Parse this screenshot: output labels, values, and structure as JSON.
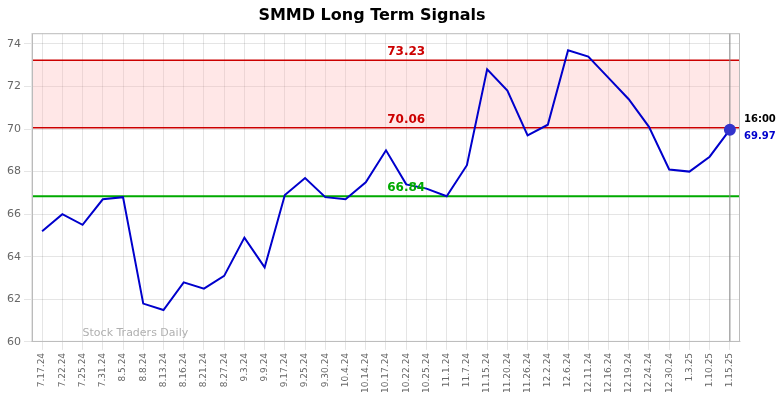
{
  "chart_data": {
    "type": "line",
    "title": "SMMD Long Term Signals",
    "categories": [
      "7.17.24",
      "7.22.24",
      "7.25.24",
      "7.31.24",
      "8.5.24",
      "8.8.24",
      "8.13.24",
      "8.16.24",
      "8.21.24",
      "8.27.24",
      "9.3.24",
      "9.9.24",
      "9.17.24",
      "9.25.24",
      "9.30.24",
      "10.4.24",
      "10.14.24",
      "10.17.24",
      "10.22.24",
      "10.25.24",
      "11.1.24",
      "11.7.24",
      "11.15.24",
      "11.20.24",
      "11.26.24",
      "12.2.24",
      "12.6.24",
      "12.11.24",
      "12.16.24",
      "12.19.24",
      "12.24.24",
      "12.30.24",
      "1.3.25",
      "1.10.25",
      "1.15.25"
    ],
    "values": [
      65.2,
      66.0,
      65.5,
      66.7,
      66.8,
      61.8,
      61.5,
      62.8,
      62.5,
      63.1,
      64.9,
      63.5,
      66.9,
      67.7,
      66.8,
      66.7,
      67.5,
      69.0,
      67.4,
      67.2,
      66.84,
      68.3,
      72.8,
      71.8,
      69.7,
      70.2,
      73.7,
      73.4,
      72.4,
      71.4,
      70.1,
      68.1,
      68.0,
      68.7,
      69.97
    ],
    "color": "#0000cc",
    "ylim": [
      60,
      74.5
    ],
    "yticks": [
      60,
      62,
      64,
      66,
      68,
      70,
      72,
      74
    ],
    "grid": true,
    "annotations": [
      {
        "type": "band",
        "y": [
          70.06,
          73.23
        ],
        "color": "#ffaaaa"
      },
      {
        "type": "hline",
        "y": 66.84,
        "label": "66.84",
        "x": "10.22.24",
        "color": "#00aa00"
      },
      {
        "type": "hline",
        "y": 70.06,
        "label": "70.06",
        "x": "10.22.24",
        "color": "#cc0000"
      },
      {
        "type": "hline",
        "y": 73.23,
        "label": "73.23",
        "x": "10.22.24",
        "color": "#cc0000"
      },
      {
        "type": "vline",
        "x": "1.15.25",
        "color": "#888888"
      },
      {
        "type": "point",
        "x": "1.15.25",
        "y": 69.97,
        "label": "69.97",
        "time": "16:00",
        "color": "#3333cc"
      },
      {
        "type": "watermark",
        "text": "Stock Traders Daily"
      }
    ]
  }
}
